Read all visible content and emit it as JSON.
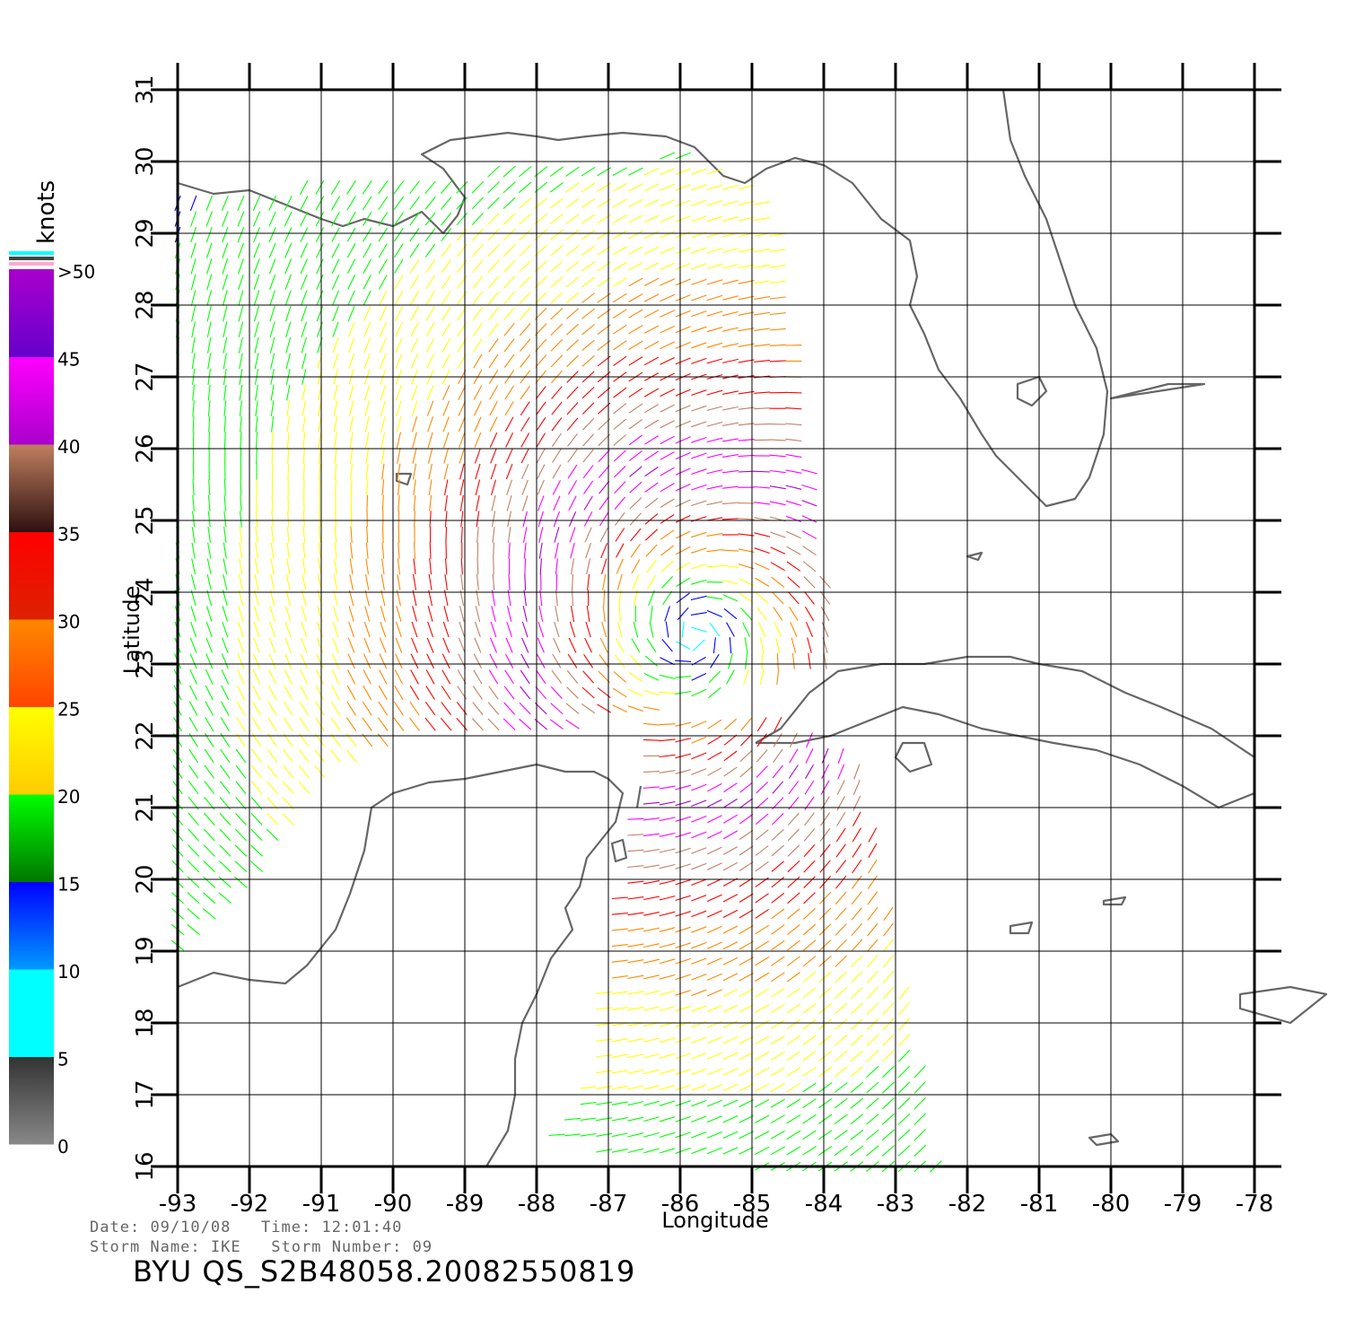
{
  "map": {
    "lon_range": [
      -93,
      -78
    ],
    "lat_range": [
      16,
      31
    ],
    "lon_ticks": [
      "-93",
      "-92",
      "-91",
      "-90",
      "-89",
      "-88",
      "-87",
      "-86",
      "-85",
      "-84",
      "-83",
      "-82",
      "-81",
      "-80",
      "-79",
      "-78"
    ],
    "lat_ticks": [
      "16",
      "17",
      "18",
      "19",
      "20",
      "21",
      "22",
      "23",
      "24",
      "25",
      "26",
      "27",
      "28",
      "29",
      "30",
      "31"
    ],
    "xlabel": "Longitude",
    "ylabel": "Latitude",
    "grid": true,
    "coast_color": "#666666",
    "grid_color": "#000000"
  },
  "colorbar": {
    "title": "knots",
    "labels": [
      "0",
      "5",
      "10",
      "15",
      "20",
      "25",
      "30",
      "35",
      "40",
      "45",
      ">50"
    ],
    "bands": [
      {
        "from": 0,
        "to": 5,
        "top": "#333333",
        "bottom": "#888888"
      },
      {
        "from": 5,
        "to": 10,
        "top": "#00ffff",
        "bottom": "#00ffff"
      },
      {
        "from": 10,
        "to": 15,
        "top": "#0000ff",
        "bottom": "#0099ff"
      },
      {
        "from": 15,
        "to": 20,
        "top": "#00ff00",
        "bottom": "#007700"
      },
      {
        "from": 20,
        "to": 25,
        "top": "#ffff00",
        "bottom": "#ffcc00"
      },
      {
        "from": 25,
        "to": 30,
        "top": "#ff8800",
        "bottom": "#ff4400"
      },
      {
        "from": 30,
        "to": 35,
        "top": "#ff0000",
        "bottom": "#dd2200"
      },
      {
        "from": 35,
        "to": 40,
        "top": "#c08060",
        "bottom": "#301010"
      },
      {
        "from": 40,
        "to": 45,
        "top": "#ff00ff",
        "bottom": "#aa00cc"
      },
      {
        "from": 45,
        "to": 50,
        "top": "#aa00cc",
        "bottom": "#6600cc"
      }
    ]
  },
  "swaths": [
    {
      "name": "west",
      "polygon": [
        [
          -93,
          29.5
        ],
        [
          -86,
          30.1
        ],
        [
          -84.7,
          29.5
        ],
        [
          -83.8,
          23
        ],
        [
          -87,
          22.2
        ],
        [
          -88.5,
          22
        ],
        [
          -90,
          22
        ],
        [
          -91,
          21.5
        ],
        [
          -92,
          20
        ],
        [
          -93,
          19
        ]
      ]
    },
    {
      "name": "south",
      "polygon": [
        [
          -86.6,
          22.2
        ],
        [
          -84.9,
          22.3
        ],
        [
          -83.5,
          21.7
        ],
        [
          -82.4,
          16
        ],
        [
          -85,
          16
        ],
        [
          -88,
          16.3
        ],
        [
          -87.3,
          17
        ],
        [
          -87,
          19
        ],
        [
          -86.6,
          21
        ]
      ]
    }
  ],
  "wind_field": {
    "center": [
      -85.8,
      23.4
    ],
    "peak_speed": 45,
    "radius_of_max_wind_deg": 2.5
  },
  "footer": {
    "date_label": "Date:",
    "date": "09/10/08",
    "time_label": "Time:",
    "time": "12:01:40",
    "storm_name_label": "Storm Name:",
    "storm_name": "IKE",
    "storm_number_label": "Storm Number:",
    "storm_number": "09",
    "file_id": "BYU QS_S2B48058.20082550819"
  }
}
